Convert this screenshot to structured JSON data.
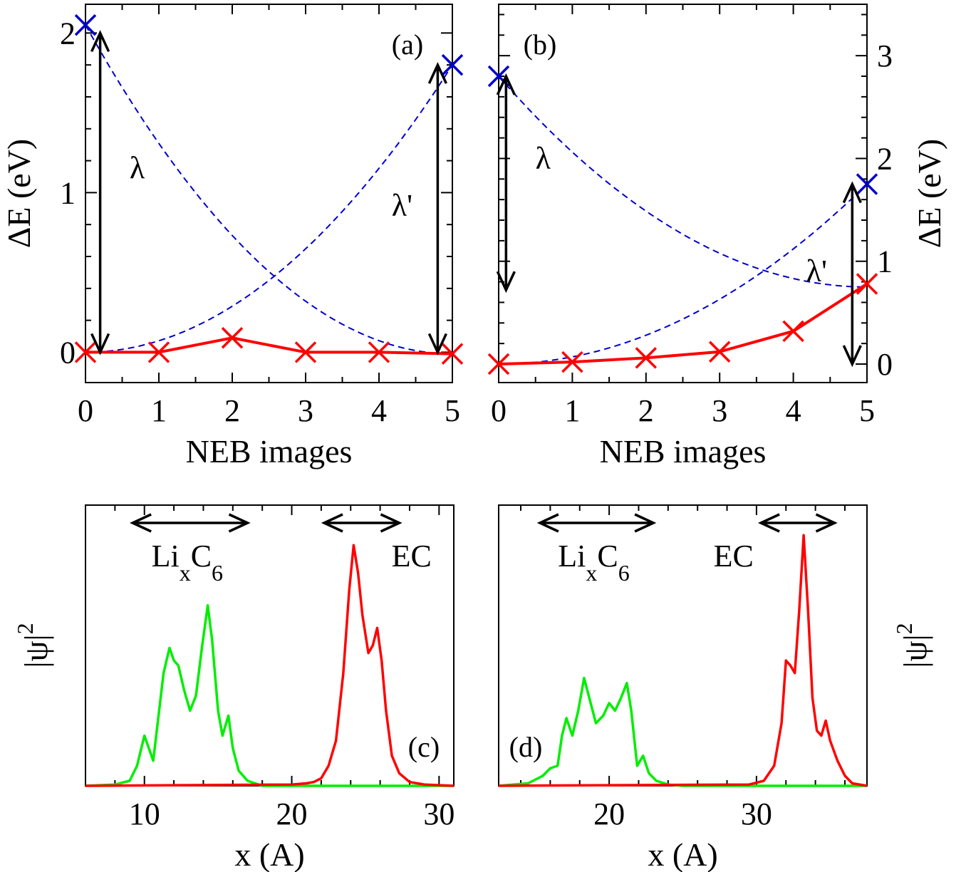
{
  "colors": {
    "red": "#ff0000",
    "blue": "#0000cc",
    "green": "#00ee00",
    "black": "#000000"
  },
  "chart_data": [
    {
      "panel": "a",
      "type": "line",
      "label": "(a)",
      "xlabel": "NEB images",
      "ylabel": "ΔE (eV)",
      "ylabel_side": "left",
      "xlim": [
        0,
        5
      ],
      "ylim": [
        -0.19,
        2.18
      ],
      "xticks": [
        0,
        1,
        2,
        3,
        4,
        5
      ],
      "yticks": [
        0,
        1,
        2
      ],
      "x": [
        0,
        1,
        2,
        3,
        4,
        5
      ],
      "series": [
        {
          "values": [
            0.0,
            0.0,
            0.09,
            0.0,
            0.0,
            -0.01
          ],
          "color": "#ff0000",
          "style": "solid",
          "marker": "x"
        }
      ],
      "parabolas": [
        {
          "x": [
            0,
            5
          ],
          "y": [
            2.05,
            -0.01
          ],
          "color": "#0000cc",
          "style": "dashed",
          "end_marker_x": 0
        },
        {
          "x": [
            5,
            0
          ],
          "y": [
            1.8,
            0.0
          ],
          "color": "#0000cc",
          "style": "dashed",
          "end_marker_x": 5
        }
      ],
      "annotations": [
        {
          "text": "λ",
          "kind": "vertical-arrow",
          "x": 0.2,
          "y_from": 0.0,
          "y_to": 2.0
        },
        {
          "text": "λ'",
          "kind": "vertical-arrow",
          "x": 4.8,
          "y_from": 0.0,
          "y_to": 1.8
        }
      ]
    },
    {
      "panel": "b",
      "type": "line",
      "label": "(b)",
      "xlabel": "NEB images",
      "ylabel": "ΔE (eV)",
      "ylabel_side": "right",
      "xlim": [
        0,
        5
      ],
      "ylim": [
        -0.18,
        3.5
      ],
      "xticks": [
        0,
        1,
        2,
        3,
        4,
        5
      ],
      "yticks": [
        0,
        1,
        2,
        3
      ],
      "x": [
        0,
        1,
        2,
        3,
        4,
        5
      ],
      "series": [
        {
          "values": [
            0.0,
            0.02,
            0.06,
            0.12,
            0.32,
            0.78
          ],
          "color": "#ff0000",
          "style": "solid",
          "marker": "x"
        }
      ],
      "parabolas": [
        {
          "x": [
            0,
            5
          ],
          "y": [
            2.8,
            0.75
          ],
          "color": "#0000cc",
          "style": "dashed",
          "end_marker_x": 0
        },
        {
          "x": [
            5,
            0
          ],
          "y": [
            1.75,
            0.0
          ],
          "color": "#0000cc",
          "style": "dashed",
          "end_marker_x": 5
        }
      ],
      "annotations": [
        {
          "text": "λ",
          "kind": "vertical-arrow",
          "x": 0.1,
          "y_from": 0.72,
          "y_to": 2.8
        },
        {
          "text": "λ'",
          "kind": "vertical-arrow",
          "x": 4.8,
          "y_from": 0.0,
          "y_to": 1.75
        }
      ]
    },
    {
      "panel": "c",
      "type": "line",
      "label": "(c)",
      "xlabel": "x (A)",
      "ylabel": "|ψ|",
      "ylabel_sup": "2",
      "ylabel_side": "left",
      "xlim": [
        6,
        31
      ],
      "ylim": [
        0,
        1.12
      ],
      "xticks": [
        10,
        20,
        30
      ],
      "green_series": {
        "color": "#00ee00",
        "x": [
          6,
          8,
          9,
          9.5,
          10,
          10.3,
          10.6,
          10.9,
          11.3,
          11.7,
          12,
          12.3,
          12.7,
          13.1,
          13.5,
          13.9,
          14.3,
          14.6,
          15,
          15.3,
          15.7,
          16,
          16.4,
          17,
          18,
          31
        ],
        "y": [
          0,
          0.005,
          0.02,
          0.08,
          0.2,
          0.15,
          0.1,
          0.25,
          0.45,
          0.55,
          0.5,
          0.48,
          0.38,
          0.3,
          0.36,
          0.55,
          0.72,
          0.58,
          0.3,
          0.2,
          0.28,
          0.15,
          0.06,
          0.02,
          0,
          0
        ]
      },
      "red_series": {
        "color": "#ff0000",
        "x": [
          6,
          20,
          21,
          21.5,
          22,
          22.5,
          23,
          23.5,
          23.9,
          24.2,
          24.5,
          24.8,
          25.2,
          25.5,
          25.8,
          26.1,
          26.4,
          26.8,
          27.3,
          28,
          29,
          31
        ],
        "y": [
          0,
          0.005,
          0.01,
          0.015,
          0.03,
          0.08,
          0.18,
          0.45,
          0.78,
          0.96,
          0.85,
          0.68,
          0.53,
          0.56,
          0.63,
          0.5,
          0.3,
          0.12,
          0.05,
          0.015,
          0.005,
          0
        ]
      },
      "annotations": [
        {
          "text": "Li",
          "sub1": "x",
          "mid": "C",
          "sub2": "6",
          "kind": "double-arrow",
          "x_from": 9.2,
          "x_to": 17.0
        },
        {
          "text": "EC",
          "kind": "double-arrow",
          "x_from": 22.2,
          "x_to": 27.3
        }
      ]
    },
    {
      "panel": "d",
      "type": "line",
      "label": "(d)",
      "xlabel": "x (A)",
      "ylabel": "|ψ|",
      "ylabel_sup": "2",
      "ylabel_side": "right",
      "xlim": [
        12.5,
        37.5
      ],
      "ylim": [
        0,
        1.12
      ],
      "xticks": [
        20,
        30
      ],
      "green_series": {
        "color": "#00ee00",
        "x": [
          12.5,
          14.5,
          15.5,
          16,
          16.5,
          16.8,
          17.1,
          17.5,
          17.9,
          18.3,
          18.7,
          19.1,
          19.6,
          20,
          20.4,
          20.8,
          21.2,
          21.5,
          21.9,
          22.3,
          22.7,
          23.2,
          24,
          25,
          37.5
        ],
        "y": [
          0,
          0.01,
          0.04,
          0.07,
          0.08,
          0.2,
          0.27,
          0.2,
          0.3,
          0.43,
          0.34,
          0.25,
          0.28,
          0.33,
          0.3,
          0.35,
          0.41,
          0.3,
          0.08,
          0.12,
          0.05,
          0.02,
          0.005,
          0,
          0
        ]
      },
      "red_series": {
        "color": "#ff0000",
        "x": [
          12.5,
          29.5,
          30.5,
          31.2,
          31.7,
          32,
          32.3,
          32.6,
          32.9,
          33.2,
          33.5,
          33.8,
          34.1,
          34.4,
          34.7,
          35,
          35.5,
          36,
          36.5,
          37.5
        ],
        "y": [
          0,
          0.005,
          0.02,
          0.08,
          0.25,
          0.5,
          0.48,
          0.45,
          0.7,
          1.0,
          0.7,
          0.35,
          0.22,
          0.2,
          0.26,
          0.18,
          0.1,
          0.04,
          0.01,
          0
        ]
      },
      "annotations": [
        {
          "text": "Li",
          "sub1": "x",
          "mid": "C",
          "sub2": "6",
          "kind": "double-arrow",
          "x_from": 15.3,
          "x_to": 23.0
        },
        {
          "text": "EC",
          "kind": "double-arrow",
          "x_from": 30.3,
          "x_to": 35.3
        }
      ]
    }
  ]
}
